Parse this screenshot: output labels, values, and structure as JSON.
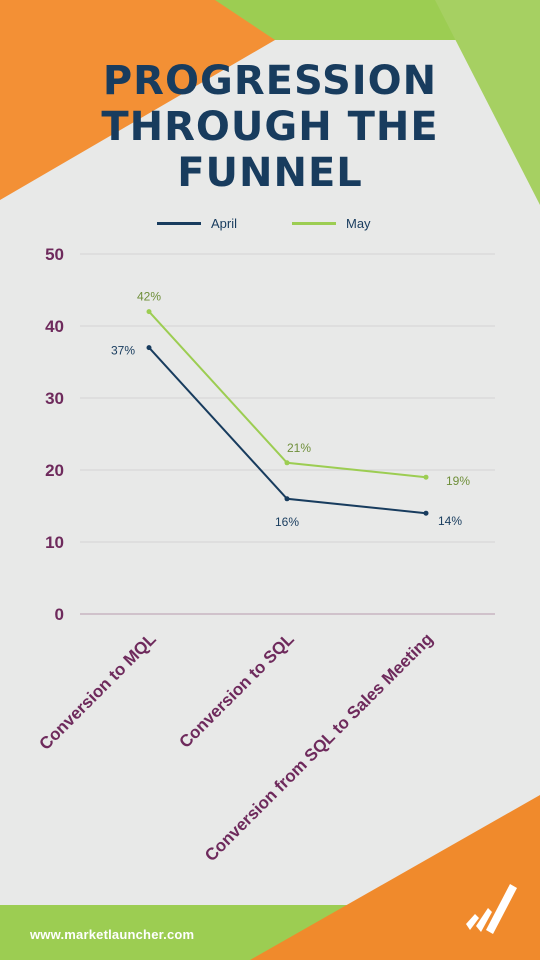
{
  "title_lines": [
    "PROGRESSION",
    "THROUGH THE",
    "FUNNEL"
  ],
  "footer": {
    "url": "www.marketlauncher.com",
    "logo_icon": "market-launcher-logo-icon"
  },
  "colors": {
    "title": "#183c5e",
    "april": "#183c5e",
    "may": "#9ccd52",
    "axis_text": "#6e2a5c",
    "orange": "#f08a2c",
    "green": "#9ccd52",
    "background": "#e8e9e8"
  },
  "chart_data": {
    "type": "line",
    "categories": [
      "Conversion to MQL",
      "Conversion to SQL",
      "Conversion from SQL to Sales Meeting"
    ],
    "series": [
      {
        "name": "April",
        "values": [
          37,
          16,
          14
        ],
        "labels": [
          "37%",
          "16%",
          "14%"
        ]
      },
      {
        "name": "May",
        "values": [
          42,
          21,
          19
        ],
        "labels": [
          "42%",
          "21%",
          "19%"
        ]
      }
    ],
    "yticks": [
      0,
      10,
      20,
      30,
      40,
      50
    ],
    "ylim": [
      0,
      50
    ],
    "grid": true,
    "legend_position": "top-center",
    "title": "PROGRESSION THROUGH THE FUNNEL",
    "xlabel": "",
    "ylabel": ""
  }
}
